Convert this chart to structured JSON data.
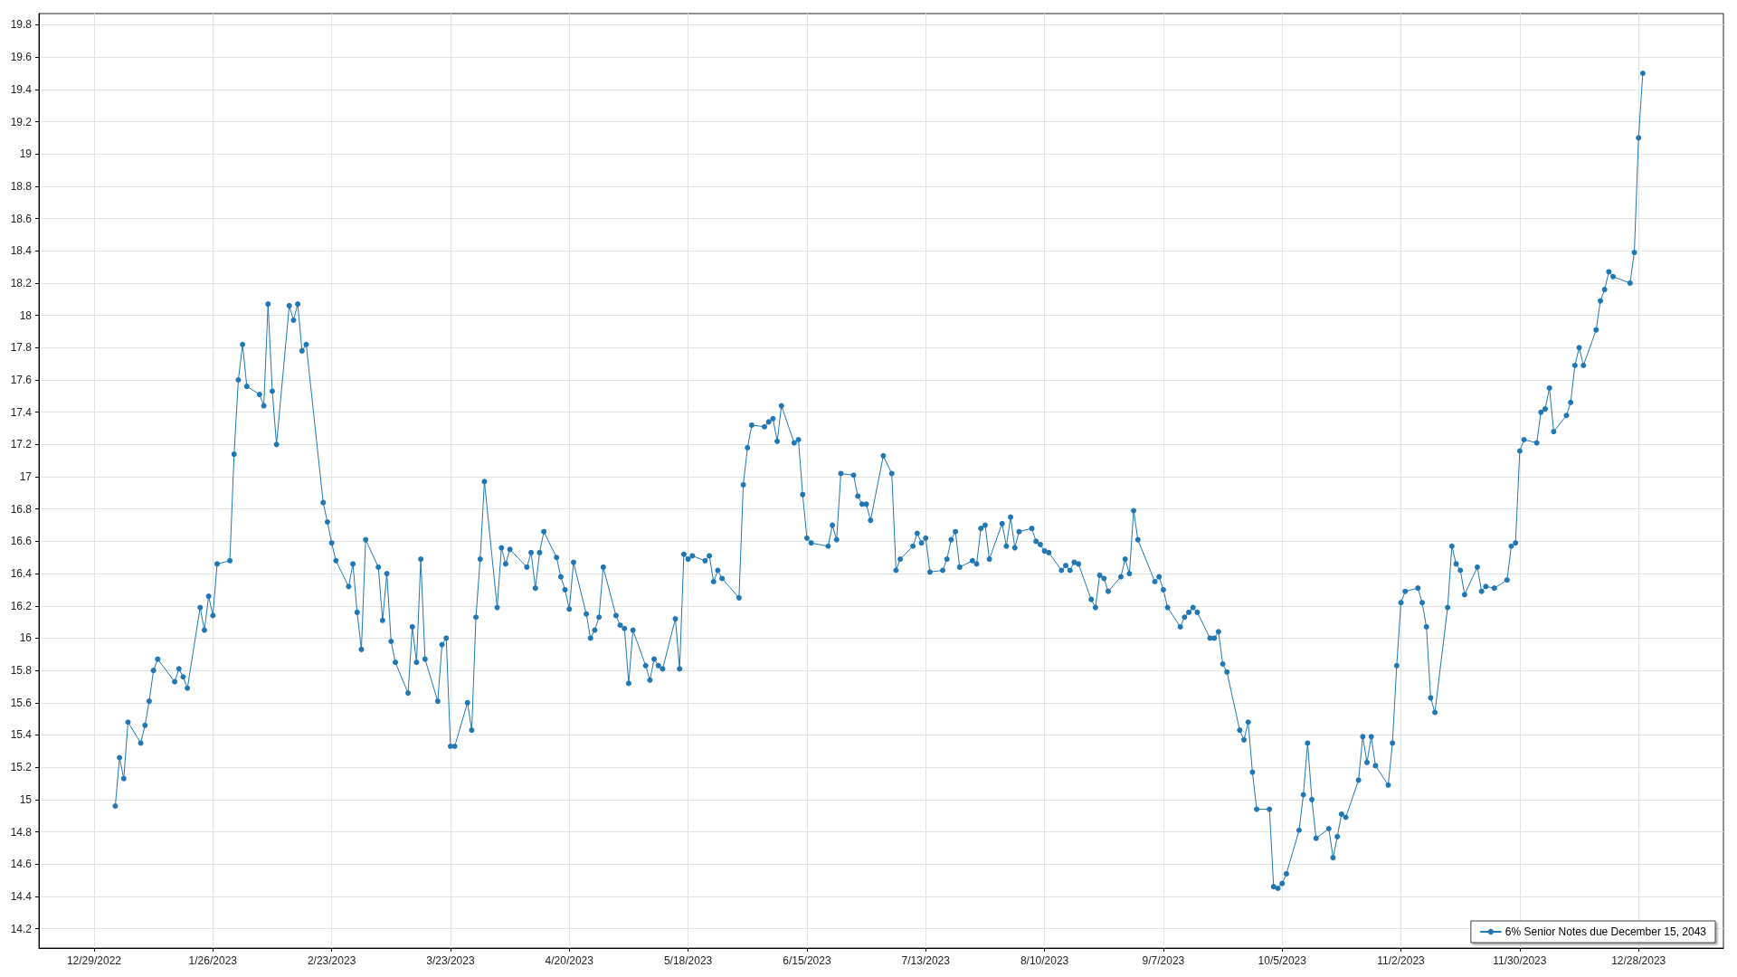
{
  "chart_data": {
    "type": "line",
    "xlim": [
      "2022-12-16",
      "2024-01-17"
    ],
    "ylim": [
      14.08,
      19.87
    ],
    "xticks": [
      {
        "value": "2022-12-29",
        "label": "12/29/2022"
      },
      {
        "value": "2023-01-26",
        "label": "1/26/2023"
      },
      {
        "value": "2023-02-23",
        "label": "2/23/2023"
      },
      {
        "value": "2023-03-23",
        "label": "3/23/2023"
      },
      {
        "value": "2023-04-20",
        "label": "4/20/2023"
      },
      {
        "value": "2023-05-18",
        "label": "5/18/2023"
      },
      {
        "value": "2023-06-15",
        "label": "6/15/2023"
      },
      {
        "value": "2023-07-13",
        "label": "7/13/2023"
      },
      {
        "value": "2023-08-10",
        "label": "8/10/2023"
      },
      {
        "value": "2023-09-07",
        "label": "9/7/2023"
      },
      {
        "value": "2023-10-05",
        "label": "10/5/2023"
      },
      {
        "value": "2023-11-02",
        "label": "11/2/2023"
      },
      {
        "value": "2023-11-30",
        "label": "11/30/2023"
      },
      {
        "value": "2023-12-28",
        "label": "12/28/2023"
      }
    ],
    "yticks": [
      14.2,
      14.4,
      14.6,
      14.8,
      15,
      15.2,
      15.4,
      15.6,
      15.8,
      16,
      16.2,
      16.4,
      16.6,
      16.8,
      17,
      17.2,
      17.4,
      17.6,
      17.8,
      18,
      18.2,
      18.4,
      18.6,
      18.8,
      19,
      19.2,
      19.4,
      19.6,
      19.8
    ],
    "grid": true,
    "legend": "bottom right",
    "marker": "circle",
    "line_style": "solid",
    "x": [
      "2023-01-03",
      "2023-01-04",
      "2023-01-05",
      "2023-01-06",
      "2023-01-09",
      "2023-01-10",
      "2023-01-11",
      "2023-01-12",
      "2023-01-13",
      "2023-01-17",
      "2023-01-18",
      "2023-01-19",
      "2023-01-20",
      "2023-01-23",
      "2023-01-24",
      "2023-01-25",
      "2023-01-26",
      "2023-01-27",
      "2023-01-30",
      "2023-01-31",
      "2023-02-01",
      "2023-02-02",
      "2023-02-03",
      "2023-02-06",
      "2023-02-07",
      "2023-02-08",
      "2023-02-09",
      "2023-02-10",
      "2023-02-13",
      "2023-02-14",
      "2023-02-15",
      "2023-02-16",
      "2023-02-17",
      "2023-02-21",
      "2023-02-22",
      "2023-02-23",
      "2023-02-24",
      "2023-02-27",
      "2023-02-28",
      "2023-03-01",
      "2023-03-02",
      "2023-03-03",
      "2023-03-06",
      "2023-03-07",
      "2023-03-08",
      "2023-03-09",
      "2023-03-10",
      "2023-03-13",
      "2023-03-14",
      "2023-03-15",
      "2023-03-16",
      "2023-03-17",
      "2023-03-20",
      "2023-03-21",
      "2023-03-22",
      "2023-03-23",
      "2023-03-24",
      "2023-03-27",
      "2023-03-28",
      "2023-03-29",
      "2023-03-30",
      "2023-03-31",
      "2023-04-03",
      "2023-04-04",
      "2023-04-05",
      "2023-04-06",
      "2023-04-10",
      "2023-04-11",
      "2023-04-12",
      "2023-04-13",
      "2023-04-14",
      "2023-04-17",
      "2023-04-18",
      "2023-04-19",
      "2023-04-20",
      "2023-04-21",
      "2023-04-24",
      "2023-04-25",
      "2023-04-26",
      "2023-04-27",
      "2023-04-28",
      "2023-05-01",
      "2023-05-02",
      "2023-05-03",
      "2023-05-04",
      "2023-05-05",
      "2023-05-08",
      "2023-05-09",
      "2023-05-10",
      "2023-05-11",
      "2023-05-12",
      "2023-05-15",
      "2023-05-16",
      "2023-05-17",
      "2023-05-18",
      "2023-05-19",
      "2023-05-22",
      "2023-05-23",
      "2023-05-24",
      "2023-05-25",
      "2023-05-26",
      "2023-05-30",
      "2023-05-31",
      "2023-06-01",
      "2023-06-02",
      "2023-06-05",
      "2023-06-06",
      "2023-06-07",
      "2023-06-08",
      "2023-06-09",
      "2023-06-12",
      "2023-06-13",
      "2023-06-14",
      "2023-06-15",
      "2023-06-16",
      "2023-06-20",
      "2023-06-21",
      "2023-06-22",
      "2023-06-23",
      "2023-06-26",
      "2023-06-27",
      "2023-06-28",
      "2023-06-29",
      "2023-06-30",
      "2023-07-03",
      "2023-07-05",
      "2023-07-06",
      "2023-07-07",
      "2023-07-10",
      "2023-07-11",
      "2023-07-12",
      "2023-07-13",
      "2023-07-14",
      "2023-07-17",
      "2023-07-18",
      "2023-07-19",
      "2023-07-20",
      "2023-07-21",
      "2023-07-24",
      "2023-07-25",
      "2023-07-26",
      "2023-07-27",
      "2023-07-28",
      "2023-07-31",
      "2023-08-01",
      "2023-08-02",
      "2023-08-03",
      "2023-08-04",
      "2023-08-07",
      "2023-08-08",
      "2023-08-09",
      "2023-08-10",
      "2023-08-11",
      "2023-08-14",
      "2023-08-15",
      "2023-08-16",
      "2023-08-17",
      "2023-08-18",
      "2023-08-21",
      "2023-08-22",
      "2023-08-23",
      "2023-08-24",
      "2023-08-25",
      "2023-08-28",
      "2023-08-29",
      "2023-08-30",
      "2023-08-31",
      "2023-09-01",
      "2023-09-05",
      "2023-09-06",
      "2023-09-07",
      "2023-09-08",
      "2023-09-11",
      "2023-09-12",
      "2023-09-13",
      "2023-09-14",
      "2023-09-15",
      "2023-09-18",
      "2023-09-19",
      "2023-09-20",
      "2023-09-21",
      "2023-09-22",
      "2023-09-25",
      "2023-09-26",
      "2023-09-27",
      "2023-09-28",
      "2023-09-29",
      "2023-10-02",
      "2023-10-03",
      "2023-10-04",
      "2023-10-05",
      "2023-10-06",
      "2023-10-09",
      "2023-10-10",
      "2023-10-11",
      "2023-10-12",
      "2023-10-13",
      "2023-10-16",
      "2023-10-17",
      "2023-10-18",
      "2023-10-19",
      "2023-10-20",
      "2023-10-23",
      "2023-10-24",
      "2023-10-25",
      "2023-10-26",
      "2023-10-27",
      "2023-10-30",
      "2023-10-31",
      "2023-11-01",
      "2023-11-02",
      "2023-11-03",
      "2023-11-06",
      "2023-11-07",
      "2023-11-08",
      "2023-11-09",
      "2023-11-10",
      "2023-11-13",
      "2023-11-14",
      "2023-11-15",
      "2023-11-16",
      "2023-11-17",
      "2023-11-20",
      "2023-11-21",
      "2023-11-22",
      "2023-11-24",
      "2023-11-27",
      "2023-11-28",
      "2023-11-29",
      "2023-11-30",
      "2023-12-01",
      "2023-12-04",
      "2023-12-05",
      "2023-12-06",
      "2023-12-07",
      "2023-12-08",
      "2023-12-11",
      "2023-12-12",
      "2023-12-13",
      "2023-12-14",
      "2023-12-15",
      "2023-12-18",
      "2023-12-19",
      "2023-12-20",
      "2023-12-21",
      "2023-12-22",
      "2023-12-26",
      "2023-12-27",
      "2023-12-28",
      "2023-12-29"
    ],
    "series": [
      {
        "name": "6% Senior Notes due December 15, 2043",
        "color": "#1f77b4",
        "values": [
          14.96,
          15.26,
          15.13,
          15.48,
          15.35,
          15.46,
          15.61,
          15.8,
          15.87,
          15.73,
          15.81,
          15.76,
          15.69,
          16.19,
          16.05,
          16.26,
          16.14,
          16.46,
          16.48,
          17.14,
          17.6,
          17.82,
          17.56,
          17.51,
          17.44,
          18.07,
          17.53,
          17.2,
          18.06,
          17.97,
          18.07,
          17.78,
          17.82,
          16.84,
          16.72,
          16.59,
          16.48,
          16.32,
          16.46,
          16.16,
          15.93,
          16.61,
          16.44,
          16.11,
          16.4,
          15.98,
          15.85,
          15.66,
          16.07,
          15.85,
          16.49,
          15.87,
          15.61,
          15.96,
          16,
          15.33,
          15.33,
          15.6,
          15.43,
          16.13,
          16.49,
          16.97,
          16.19,
          16.56,
          16.46,
          16.55,
          16.44,
          16.53,
          16.31,
          16.53,
          16.66,
          16.5,
          16.38,
          16.3,
          16.18,
          16.47,
          16.15,
          16,
          16.05,
          16.13,
          16.44,
          16.14,
          16.08,
          16.06,
          15.72,
          16.05,
          15.83,
          15.74,
          15.87,
          15.83,
          15.81,
          16.12,
          15.81,
          16.52,
          16.49,
          16.51,
          16.48,
          16.51,
          16.35,
          16.42,
          16.37,
          16.25,
          16.95,
          17.18,
          17.32,
          17.31,
          17.34,
          17.36,
          17.22,
          17.44,
          17.21,
          17.23,
          16.89,
          16.62,
          16.59,
          16.57,
          16.7,
          16.61,
          17.02,
          17.01,
          16.88,
          16.83,
          16.83,
          16.73,
          17.13,
          17.02,
          16.42,
          16.49,
          16.57,
          16.65,
          16.59,
          16.62,
          16.41,
          16.42,
          16.49,
          16.61,
          16.66,
          16.44,
          16.48,
          16.46,
          16.68,
          16.7,
          16.49,
          16.71,
          16.57,
          16.75,
          16.56,
          16.66,
          16.68,
          16.6,
          16.58,
          16.54,
          16.53,
          16.42,
          16.45,
          16.42,
          16.47,
          16.46,
          16.24,
          16.19,
          16.39,
          16.37,
          16.29,
          16.38,
          16.49,
          16.4,
          16.79,
          16.61,
          16.35,
          16.38,
          16.3,
          16.19,
          16.07,
          16.13,
          16.16,
          16.19,
          16.16,
          16,
          16,
          16.04,
          15.84,
          15.79,
          15.43,
          15.37,
          15.48,
          15.17,
          14.94,
          14.94,
          14.46,
          14.45,
          14.48,
          14.54,
          14.81,
          15.03,
          15.35,
          15,
          14.76,
          14.82,
          14.64,
          14.77,
          14.91,
          14.89,
          15.12,
          15.39,
          15.23,
          15.39,
          15.21,
          15.09,
          15.35,
          15.83,
          16.22,
          16.29,
          16.31,
          16.22,
          16.07,
          15.63,
          15.54,
          16.19,
          16.57,
          16.46,
          16.42,
          16.27,
          16.44,
          16.29,
          16.32,
          16.31,
          16.36,
          16.57,
          16.59,
          17.16,
          17.23,
          17.21,
          17.4,
          17.42,
          17.55,
          17.28,
          17.38,
          17.46,
          17.69,
          17.8,
          17.69,
          17.91,
          18.09,
          18.16,
          18.27,
          18.24,
          18.2,
          18.39,
          19.1,
          19.5
        ]
      }
    ]
  }
}
